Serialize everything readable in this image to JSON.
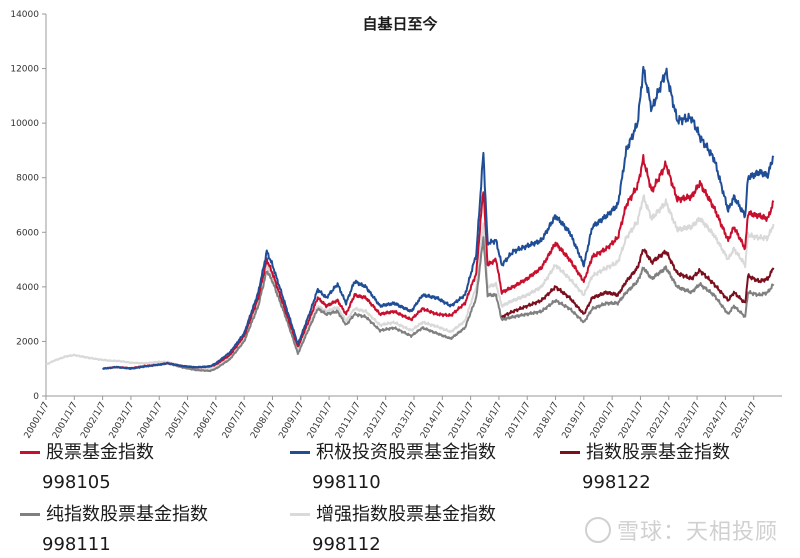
{
  "chart_data": {
    "type": "line",
    "title": "自基日至今",
    "xlabel": "",
    "ylabel": "",
    "ylim": [
      0,
      14000
    ],
    "yticks": [
      0,
      2000,
      4000,
      6000,
      8000,
      10000,
      12000,
      14000
    ],
    "xticks": [
      "2000/1/7",
      "2001/1/7",
      "2002/1/7",
      "2003/1/7",
      "2004/1/7",
      "2005/1/7",
      "2006/1/7",
      "2007/1/7",
      "2008/1/7",
      "2009/1/7",
      "2010/1/7",
      "2011/1/7",
      "2012/1/7",
      "2013/1/7",
      "2014/1/7",
      "2015/1/7",
      "2016/1/7",
      "2017/1/7",
      "2018/1/7",
      "2019/1/7",
      "2020/1/7",
      "2021/1/7",
      "2022/1/7",
      "2023/1/7",
      "2024/1/7",
      "2025/1/7"
    ],
    "grid": false,
    "legend_position": "bottom",
    "series": [
      {
        "name": "股票基金指数",
        "code": "998105",
        "color": "#c8102e",
        "points": [
          [
            2002.0,
            1000
          ],
          [
            2002.5,
            1060
          ],
          [
            2003.0,
            1020
          ],
          [
            2003.5,
            1100
          ],
          [
            2004.0,
            1150
          ],
          [
            2004.3,
            1200
          ],
          [
            2004.8,
            1100
          ],
          [
            2005.3,
            1050
          ],
          [
            2005.8,
            1080
          ],
          [
            2006.0,
            1150
          ],
          [
            2006.5,
            1500
          ],
          [
            2007.0,
            2200
          ],
          [
            2007.5,
            3600
          ],
          [
            2007.8,
            5000
          ],
          [
            2008.0,
            4500
          ],
          [
            2008.5,
            3000
          ],
          [
            2008.9,
            1800
          ],
          [
            2009.3,
            2800
          ],
          [
            2009.6,
            3600
          ],
          [
            2009.9,
            3300
          ],
          [
            2010.3,
            3500
          ],
          [
            2010.6,
            3000
          ],
          [
            2010.9,
            3700
          ],
          [
            2011.3,
            3600
          ],
          [
            2011.8,
            3000
          ],
          [
            2012.3,
            3100
          ],
          [
            2012.9,
            2800
          ],
          [
            2013.3,
            3200
          ],
          [
            2013.8,
            3000
          ],
          [
            2014.3,
            2950
          ],
          [
            2014.8,
            3400
          ],
          [
            2015.2,
            4500
          ],
          [
            2015.45,
            7600
          ],
          [
            2015.6,
            4800
          ],
          [
            2015.9,
            5000
          ],
          [
            2016.1,
            3800
          ],
          [
            2016.5,
            4000
          ],
          [
            2017.0,
            4300
          ],
          [
            2017.5,
            4700
          ],
          [
            2018.0,
            5600
          ],
          [
            2018.5,
            5000
          ],
          [
            2019.0,
            4200
          ],
          [
            2019.3,
            5100
          ],
          [
            2019.8,
            5400
          ],
          [
            2020.2,
            5800
          ],
          [
            2020.5,
            7000
          ],
          [
            2020.9,
            7700
          ],
          [
            2021.1,
            8700
          ],
          [
            2021.4,
            7500
          ],
          [
            2021.9,
            8500
          ],
          [
            2022.3,
            7200
          ],
          [
            2022.8,
            7300
          ],
          [
            2023.1,
            7800
          ],
          [
            2023.6,
            6900
          ],
          [
            2024.1,
            5700
          ],
          [
            2024.3,
            6200
          ],
          [
            2024.7,
            5400
          ],
          [
            2024.8,
            6700
          ],
          [
            2025.2,
            6600
          ],
          [
            2025.5,
            6500
          ],
          [
            2025.7,
            7100
          ]
        ]
      },
      {
        "name": "积极投资股票基金指数",
        "code": "998110",
        "color": "#1f4e96",
        "points": [
          [
            2002.0,
            1000
          ],
          [
            2002.5,
            1060
          ],
          [
            2003.0,
            1000
          ],
          [
            2003.5,
            1080
          ],
          [
            2004.0,
            1150
          ],
          [
            2004.3,
            1200
          ],
          [
            2004.8,
            1100
          ],
          [
            2005.3,
            1050
          ],
          [
            2005.8,
            1090
          ],
          [
            2006.0,
            1200
          ],
          [
            2006.5,
            1600
          ],
          [
            2007.0,
            2300
          ],
          [
            2007.5,
            3800
          ],
          [
            2007.8,
            5300
          ],
          [
            2008.0,
            4800
          ],
          [
            2008.5,
            3200
          ],
          [
            2008.9,
            1900
          ],
          [
            2009.3,
            3000
          ],
          [
            2009.6,
            3900
          ],
          [
            2009.9,
            3600
          ],
          [
            2010.3,
            4100
          ],
          [
            2010.6,
            3400
          ],
          [
            2010.9,
            4200
          ],
          [
            2011.3,
            4000
          ],
          [
            2011.8,
            3300
          ],
          [
            2012.3,
            3400
          ],
          [
            2012.9,
            3100
          ],
          [
            2013.3,
            3700
          ],
          [
            2013.8,
            3600
          ],
          [
            2014.3,
            3300
          ],
          [
            2014.8,
            3700
          ],
          [
            2015.2,
            5200
          ],
          [
            2015.45,
            8900
          ],
          [
            2015.6,
            5600
          ],
          [
            2015.9,
            5700
          ],
          [
            2016.1,
            4800
          ],
          [
            2016.5,
            5300
          ],
          [
            2017.0,
            5500
          ],
          [
            2017.5,
            5700
          ],
          [
            2018.0,
            6600
          ],
          [
            2018.5,
            6000
          ],
          [
            2019.0,
            4800
          ],
          [
            2019.3,
            6200
          ],
          [
            2019.8,
            6600
          ],
          [
            2020.2,
            7000
          ],
          [
            2020.5,
            9000
          ],
          [
            2020.9,
            10000
          ],
          [
            2021.1,
            12000
          ],
          [
            2021.4,
            10500
          ],
          [
            2021.9,
            11900
          ],
          [
            2022.3,
            10100
          ],
          [
            2022.8,
            10200
          ],
          [
            2023.1,
            9500
          ],
          [
            2023.6,
            8700
          ],
          [
            2024.1,
            6800
          ],
          [
            2024.3,
            7300
          ],
          [
            2024.7,
            6600
          ],
          [
            2024.8,
            8000
          ],
          [
            2025.2,
            8200
          ],
          [
            2025.5,
            8100
          ],
          [
            2025.7,
            8800
          ]
        ]
      },
      {
        "name": "指数股票基金指数",
        "code": "998122",
        "color": "#7a0f1e",
        "points": [
          [
            2016.1,
            2900
          ],
          [
            2016.5,
            3100
          ],
          [
            2017.0,
            3300
          ],
          [
            2017.5,
            3500
          ],
          [
            2018.0,
            4000
          ],
          [
            2018.5,
            3600
          ],
          [
            2019.0,
            3000
          ],
          [
            2019.3,
            3600
          ],
          [
            2019.8,
            3800
          ],
          [
            2020.2,
            3700
          ],
          [
            2020.5,
            4200
          ],
          [
            2020.9,
            4700
          ],
          [
            2021.1,
            5400
          ],
          [
            2021.4,
            4900
          ],
          [
            2021.9,
            5300
          ],
          [
            2022.3,
            4500
          ],
          [
            2022.8,
            4300
          ],
          [
            2023.1,
            4600
          ],
          [
            2023.6,
            4100
          ],
          [
            2024.1,
            3500
          ],
          [
            2024.3,
            3800
          ],
          [
            2024.7,
            3400
          ],
          [
            2024.8,
            4400
          ],
          [
            2025.2,
            4200
          ],
          [
            2025.5,
            4300
          ],
          [
            2025.7,
            4700
          ]
        ]
      },
      {
        "name": "纯指数股票基金指数",
        "code": "998111",
        "color": "#808080",
        "points": [
          [
            2004.0,
            1150
          ],
          [
            2004.3,
            1200
          ],
          [
            2004.8,
            1050
          ],
          [
            2005.3,
            950
          ],
          [
            2005.8,
            920
          ],
          [
            2006.0,
            1000
          ],
          [
            2006.5,
            1350
          ],
          [
            2007.0,
            2000
          ],
          [
            2007.5,
            3300
          ],
          [
            2007.8,
            4600
          ],
          [
            2008.0,
            4200
          ],
          [
            2008.5,
            2800
          ],
          [
            2008.9,
            1550
          ],
          [
            2009.3,
            2500
          ],
          [
            2009.6,
            3200
          ],
          [
            2009.9,
            3000
          ],
          [
            2010.3,
            3100
          ],
          [
            2010.6,
            2600
          ],
          [
            2010.9,
            3000
          ],
          [
            2011.3,
            2900
          ],
          [
            2011.8,
            2400
          ],
          [
            2012.3,
            2500
          ],
          [
            2012.9,
            2200
          ],
          [
            2013.3,
            2500
          ],
          [
            2013.8,
            2300
          ],
          [
            2014.3,
            2100
          ],
          [
            2014.8,
            2500
          ],
          [
            2015.2,
            3600
          ],
          [
            2015.45,
            5800
          ],
          [
            2015.6,
            3700
          ],
          [
            2015.9,
            3700
          ],
          [
            2016.1,
            2800
          ],
          [
            2016.5,
            2900
          ],
          [
            2017.0,
            3000
          ],
          [
            2017.5,
            3100
          ],
          [
            2018.0,
            3500
          ],
          [
            2018.5,
            3200
          ],
          [
            2019.0,
            2700
          ],
          [
            2019.3,
            3200
          ],
          [
            2019.8,
            3400
          ],
          [
            2020.2,
            3400
          ],
          [
            2020.5,
            3800
          ],
          [
            2020.9,
            4200
          ],
          [
            2021.1,
            4700
          ],
          [
            2021.4,
            4300
          ],
          [
            2021.9,
            4700
          ],
          [
            2022.3,
            4000
          ],
          [
            2022.8,
            3800
          ],
          [
            2023.1,
            4100
          ],
          [
            2023.6,
            3700
          ],
          [
            2024.1,
            3000
          ],
          [
            2024.3,
            3300
          ],
          [
            2024.7,
            2900
          ],
          [
            2024.8,
            3800
          ],
          [
            2025.2,
            3700
          ],
          [
            2025.5,
            3800
          ],
          [
            2025.7,
            4100
          ]
        ]
      },
      {
        "name": "增强指数股票基金指数",
        "code": "998112",
        "color": "#d9d9d9",
        "points": [
          [
            2000.0,
            1150
          ],
          [
            2000.3,
            1300
          ],
          [
            2000.7,
            1450
          ],
          [
            2001.0,
            1500
          ],
          [
            2001.4,
            1420
          ],
          [
            2001.8,
            1350
          ],
          [
            2002.2,
            1300
          ],
          [
            2002.6,
            1280
          ],
          [
            2003.0,
            1220
          ],
          [
            2003.5,
            1200
          ],
          [
            2004.0,
            1250
          ],
          [
            2004.3,
            1250
          ],
          [
            2004.8,
            1100
          ],
          [
            2005.3,
            1000
          ],
          [
            2005.8,
            980
          ],
          [
            2006.0,
            1050
          ],
          [
            2006.5,
            1400
          ],
          [
            2007.0,
            2050
          ],
          [
            2007.5,
            3400
          ],
          [
            2007.8,
            4800
          ],
          [
            2008.0,
            4400
          ],
          [
            2008.5,
            2900
          ],
          [
            2008.9,
            1650
          ],
          [
            2009.3,
            2600
          ],
          [
            2009.6,
            3300
          ],
          [
            2009.9,
            3100
          ],
          [
            2010.3,
            3250
          ],
          [
            2010.6,
            2750
          ],
          [
            2010.9,
            3200
          ],
          [
            2011.3,
            3100
          ],
          [
            2011.8,
            2600
          ],
          [
            2012.3,
            2700
          ],
          [
            2012.9,
            2400
          ],
          [
            2013.3,
            2700
          ],
          [
            2013.8,
            2550
          ],
          [
            2014.3,
            2350
          ],
          [
            2014.8,
            2750
          ],
          [
            2015.2,
            4000
          ],
          [
            2015.45,
            6300
          ],
          [
            2015.6,
            4000
          ],
          [
            2015.9,
            4100
          ],
          [
            2016.1,
            3300
          ],
          [
            2016.5,
            3500
          ],
          [
            2017.0,
            3700
          ],
          [
            2017.5,
            4000
          ],
          [
            2018.0,
            4800
          ],
          [
            2018.5,
            4300
          ],
          [
            2019.0,
            3700
          ],
          [
            2019.3,
            4400
          ],
          [
            2019.8,
            4700
          ],
          [
            2020.2,
            4900
          ],
          [
            2020.5,
            5800
          ],
          [
            2020.9,
            6400
          ],
          [
            2021.1,
            7300
          ],
          [
            2021.4,
            6500
          ],
          [
            2021.9,
            7100
          ],
          [
            2022.3,
            6100
          ],
          [
            2022.8,
            6200
          ],
          [
            2023.1,
            6500
          ],
          [
            2023.6,
            5900
          ],
          [
            2024.1,
            5000
          ],
          [
            2024.3,
            5400
          ],
          [
            2024.7,
            4800
          ],
          [
            2024.8,
            5900
          ],
          [
            2025.2,
            5800
          ],
          [
            2025.5,
            5800
          ],
          [
            2025.7,
            6300
          ]
        ]
      }
    ]
  },
  "watermark": {
    "text": "雪球：天相投顾"
  }
}
